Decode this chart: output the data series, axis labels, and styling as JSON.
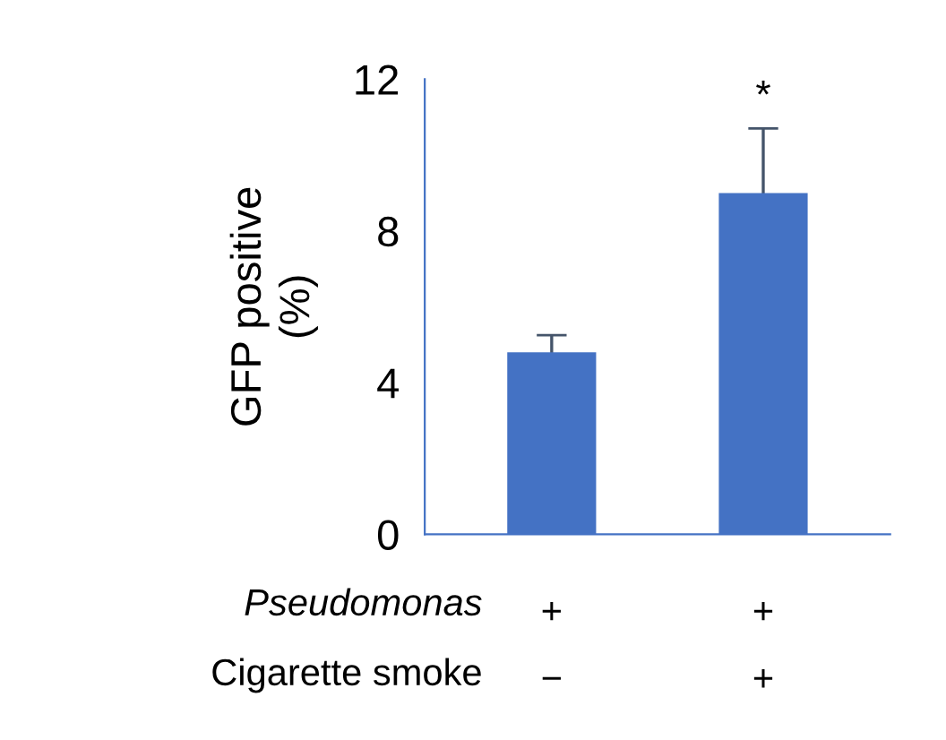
{
  "chart_data": {
    "type": "bar",
    "ylabel": "GFP positive\n(%)",
    "categories": [
      "+\n−",
      "+\n+"
    ],
    "values": [
      4.8,
      9.0
    ],
    "errors": [
      0.45,
      1.7
    ],
    "color": "#4472c4",
    "ylim": [
      0,
      12
    ],
    "yticks": [
      0,
      4,
      8,
      12
    ],
    "grid": false,
    "annotations": [
      "Pseudomonas",
      "Cigarette smoke",
      "*"
    ]
  }
}
